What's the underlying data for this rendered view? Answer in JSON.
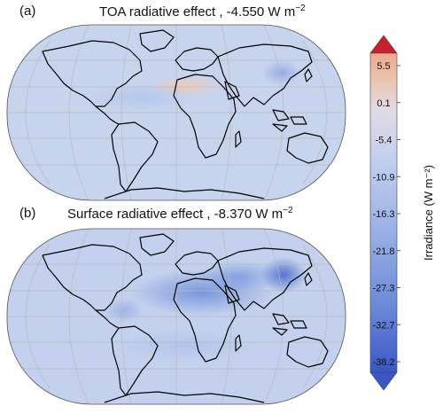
{
  "panels": [
    {
      "label": "(a)",
      "title": "TOA radiative effect , -4.550 W m",
      "title_exp": "−2"
    },
    {
      "label": "(b)",
      "title": "Surface radiative effect , -8.370 W m",
      "title_exp": "−2"
    }
  ],
  "colorbar": {
    "label": "Irradiance (W m⁻²)",
    "ticks": [
      "5.5",
      "0.1",
      "-5.4",
      "-10.9",
      "-16.3",
      "-21.8",
      "-27.3",
      "-32.7",
      "-38.2"
    ],
    "colors": {
      "top": "#c81e2e",
      "upper": "#e9c1ad",
      "mid": "#d8e1f2",
      "lower": "#6f8fd6",
      "bottom": "#3a5bc8"
    }
  },
  "map": {
    "ocean_color": "#c3d2ee",
    "land_color": "#c8d5ee",
    "frame_color": "#e6e6e6"
  }
}
